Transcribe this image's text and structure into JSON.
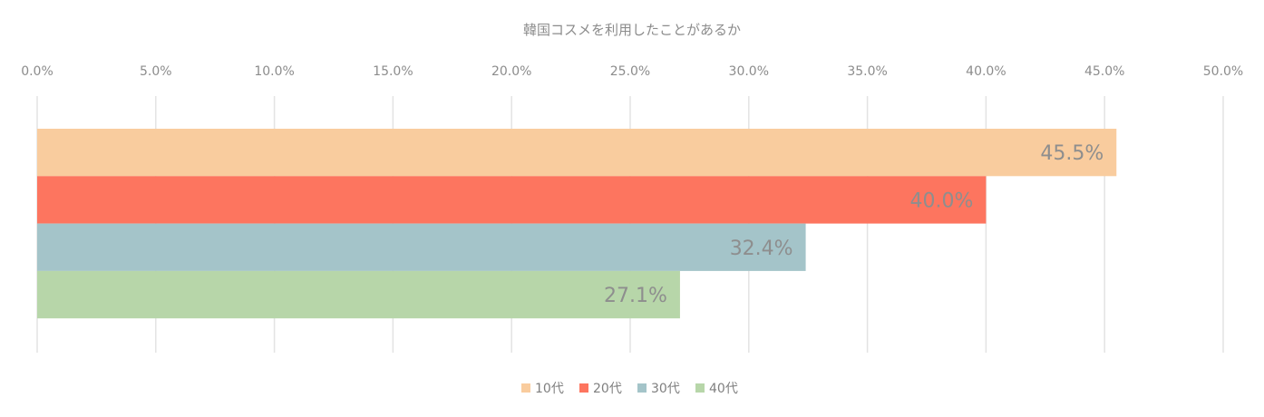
{
  "chart_data": {
    "type": "bar",
    "orientation": "horizontal",
    "title": "韓国コスメを利用したことがあるか",
    "xaxis_position": "top",
    "xlim": [
      0,
      50
    ],
    "xticks": [
      "0.0%",
      "5.0%",
      "10.0%",
      "15.0%",
      "20.0%",
      "25.0%",
      "30.0%",
      "35.0%",
      "40.0%",
      "45.0%",
      "50.0%"
    ],
    "grid": true,
    "legend_position": "bottom",
    "series": [
      {
        "name": "10代",
        "value": 45.5,
        "label": "45.5%",
        "color": "#f9cc9e"
      },
      {
        "name": "20代",
        "value": 40.0,
        "label": "40.0%",
        "color": "#fd755f"
      },
      {
        "name": "30代",
        "value": 32.4,
        "label": "32.4%",
        "color": "#a4c4c9"
      },
      {
        "name": "40代",
        "value": 27.1,
        "label": "27.1%",
        "color": "#b7d6a9"
      }
    ]
  }
}
